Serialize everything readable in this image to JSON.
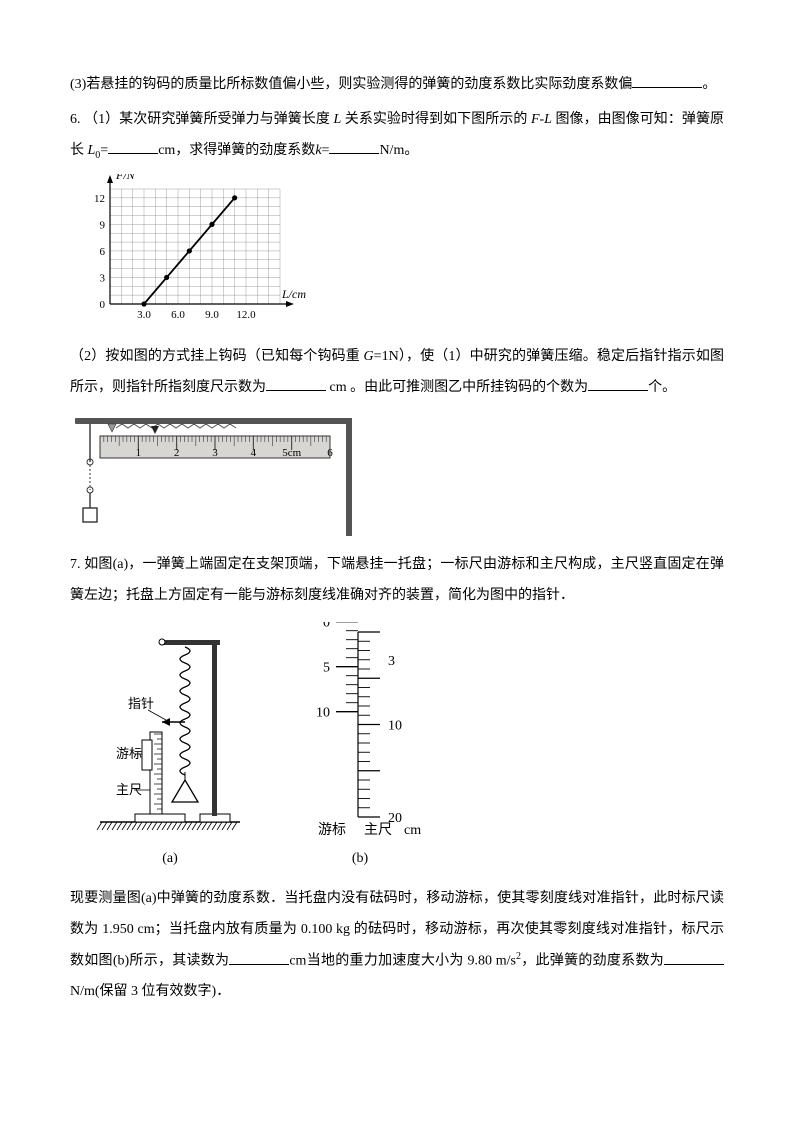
{
  "q5_3": "(3)若悬挂的钩码的质量比所标数值偏小些，则实验测得的弹簧的劲度系数比实际劲度系数偏",
  "q5_3_end": "。",
  "q6_1a": "6.  （1）某次研究弹簧所受弹力与弹簧长度 ",
  "q6_1b": " 关系实验时得到如下图所示的 ",
  "q6_1c": " 图像，由图像可知：弹簧原长",
  "q6_1d": "=",
  "q6_1e": "cm，求得弹簧的劲度系数",
  "q6_1f": "=",
  "q6_1g": "N/m。",
  "L": "L",
  "FL": "F-L",
  "L0": "L",
  "zero": "0",
  "k": "k",
  "chart": {
    "ylabel": "F/N",
    "xlabel": "L/cm",
    "yticks": [
      "0",
      "3",
      "6",
      "9",
      "12"
    ],
    "xticks": [
      "3.0",
      "6.0",
      "9.0",
      "12.0"
    ],
    "background": "#ffffff",
    "grid": "#888888",
    "axis": "#000000",
    "plot": "#000000",
    "points": [
      [
        3,
        0
      ],
      [
        5,
        3
      ],
      [
        7,
        6
      ],
      [
        9,
        9
      ],
      [
        11,
        12
      ]
    ],
    "xlim": [
      0,
      15
    ],
    "ylim": [
      0,
      13
    ]
  },
  "q6_2a": "（2）按如图的方式挂上钩码（已知每个钩码重 ",
  "q6_2b": "=1N），使（1）中研究的弹簧压缩。稳定后指针指示如图所示，则指针所指刻度尺示数为",
  "q6_2c": " cm 。由此可推测图乙中所挂钩码的个数为",
  "q6_2d": "个。",
  "G": "G",
  "ruler": {
    "labels": [
      "1",
      "2",
      "3",
      "4",
      "5cm",
      "6"
    ]
  },
  "q7a": "7. 如图(a)，一弹簧上端固定在支架顶端，下端悬挂一托盘；一标尺由游标和主尺构成，主尺竖直固定在弹簧左边；托盘上方固定有一能与游标刻度线准确对齐的装置，简化为图中的指针．",
  "fig7a": {
    "pointer": "指针",
    "vernier": "游标",
    "main": "主尺",
    "caption": "(a)"
  },
  "fig7b": {
    "left_nums": [
      "0",
      "5",
      "10"
    ],
    "right_nums": [
      "3",
      "10",
      "20"
    ],
    "bottom_left": "游标",
    "bottom_right": "主尺",
    "unit": "cm",
    "caption": "(b)"
  },
  "q7b1": "现要测量图(a)中弹簧的劲度系数．当托盘内没有砝码时，移动游标，使其零刻度线对准指针，此时标尺读数为 1.950 cm；当托盘内放有质量为 0.100 kg 的砝码时，移动游标，再次使其零刻度线对准指针，标尺示数如图(b)所示，其读数为",
  "q7b2": "cm当地的重力加速度大小为 9.80 m/s",
  "q7b3": "，此弹簧的劲度系数为",
  "q7b4": "N/m(保留 3 位有效数字)．",
  "two": "2"
}
